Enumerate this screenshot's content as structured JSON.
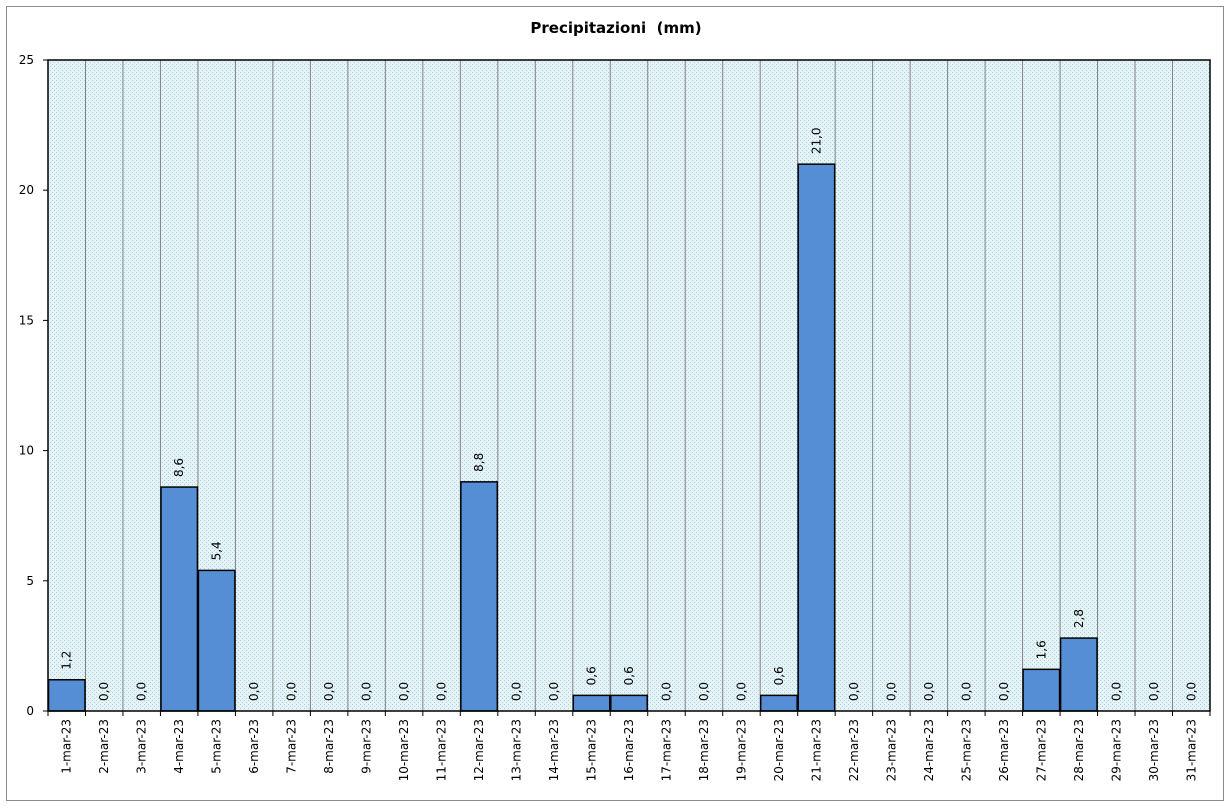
{
  "chart_data": {
    "type": "bar",
    "title": "Precipitazioni  (mm)",
    "xlabel": "",
    "ylabel": "",
    "ylim": [
      0,
      25
    ],
    "yticks": [
      0,
      5,
      10,
      15,
      20,
      25
    ],
    "grid": true,
    "categories": [
      "1-mar-23",
      "2-mar-23",
      "3-mar-23",
      "4-mar-23",
      "5-mar-23",
      "6-mar-23",
      "7-mar-23",
      "8-mar-23",
      "9-mar-23",
      "10-mar-23",
      "11-mar-23",
      "12-mar-23",
      "13-mar-23",
      "14-mar-23",
      "15-mar-23",
      "16-mar-23",
      "17-mar-23",
      "18-mar-23",
      "19-mar-23",
      "20-mar-23",
      "21-mar-23",
      "22-mar-23",
      "23-mar-23",
      "24-mar-23",
      "25-mar-23",
      "26-mar-23",
      "27-mar-23",
      "28-mar-23",
      "29-mar-23",
      "30-mar-23",
      "31-mar-23"
    ],
    "values": [
      1.2,
      0.0,
      0.0,
      8.6,
      5.4,
      0.0,
      0.0,
      0.0,
      0.0,
      0.0,
      0.0,
      8.8,
      0.0,
      0.0,
      0.6,
      0.6,
      0.0,
      0.0,
      0.0,
      0.6,
      21.0,
      0.0,
      0.0,
      0.0,
      0.0,
      0.0,
      1.6,
      2.8,
      0.0,
      0.0,
      0.0
    ],
    "data_labels": [
      "1,2",
      "0,0",
      "0,0",
      "8,6",
      "5,4",
      "0,0",
      "0,0",
      "0,0",
      "0,0",
      "0,0",
      "0,0",
      "8,8",
      "0,0",
      "0,0",
      "0,6",
      "0,6",
      "0,0",
      "0,0",
      "0,0",
      "0,6",
      "21,0",
      "0,0",
      "0,0",
      "0,0",
      "0,0",
      "0,0",
      "1,6",
      "2,8",
      "0,0",
      "0,0",
      "0,0"
    ],
    "colors": {
      "bar_fill": "#558ed5",
      "bar_stroke": "#000000",
      "plot_bg": "#daeef3",
      "grid": "#808080"
    }
  }
}
